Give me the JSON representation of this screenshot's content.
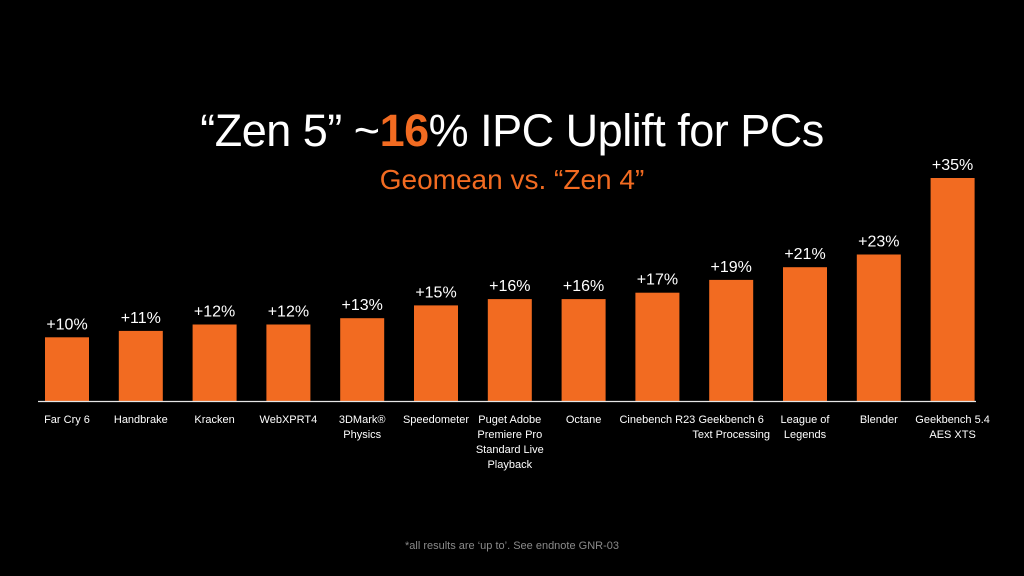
{
  "slide": {
    "title_prefix": "“Zen 5” ~",
    "title_accent": "16",
    "title_suffix": "% IPC Uplift for PCs",
    "subtitle": "Geomean  vs. “Zen 4”",
    "footnote": "*all results are ‘up to’. See endnote GNR-03"
  },
  "colors": {
    "bar": "#f26b21",
    "accent": "#f26b21",
    "text": "#ffffff",
    "background": "#000000",
    "axis": "#e6e6e6"
  },
  "chart_data": {
    "type": "bar",
    "title": "“Zen 5” ~16% IPC Uplift for PCs",
    "subtitle": "Geomean  vs. “Zen 4”",
    "xlabel": "",
    "ylabel": "",
    "ylim": [
      0,
      35
    ],
    "grid": false,
    "legend": "none",
    "categories": [
      [
        "Far Cry 6"
      ],
      [
        "Handbrake"
      ],
      [
        "Kracken"
      ],
      [
        "WebXPRT4"
      ],
      [
        "3DMark®",
        "Physics"
      ],
      [
        "Speedometer"
      ],
      [
        "Puget Adobe",
        "Premiere Pro",
        "Standard Live",
        "Playback"
      ],
      [
        "Octane"
      ],
      [
        "Cinebench R23"
      ],
      [
        "Geekbench 6",
        "Text Processing"
      ],
      [
        "League of",
        "Legends"
      ],
      [
        "Blender"
      ],
      [
        "Geekbench 5.4",
        "AES XTS"
      ]
    ],
    "values": [
      10,
      11,
      12,
      12,
      13,
      15,
      16,
      16,
      17,
      19,
      21,
      23,
      35
    ],
    "data_labels": [
      "+10%",
      "+11%",
      "+12%",
      "+12%",
      "+13%",
      "+15%",
      "+16%",
      "+16%",
      "+17%",
      "+19%",
      "+21%",
      "+23%",
      "+35%"
    ]
  }
}
